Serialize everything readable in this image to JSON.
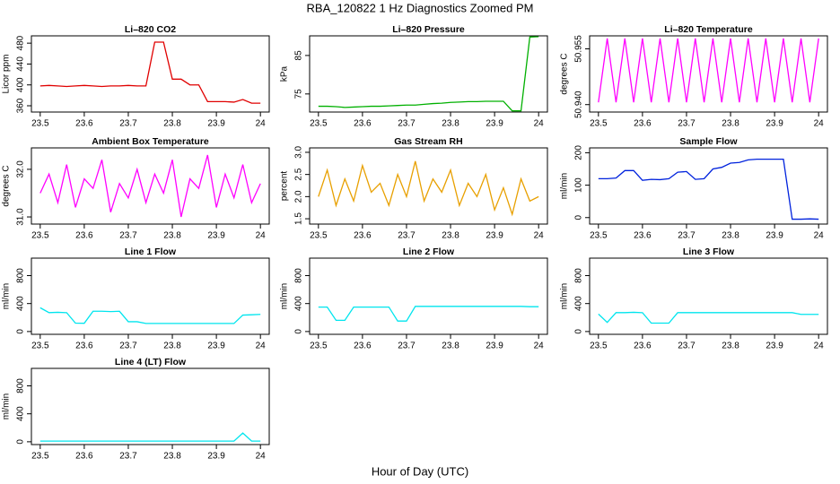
{
  "title": "RBA_120822  1 Hz Diagnostics Zoomed PM",
  "xlabel": "Hour of Day (UTC)",
  "chart_data": [
    {
      "type": "line",
      "title": "Li–820 CO2",
      "ylabel": "Licor ppm",
      "x": [
        23.5,
        23.52,
        23.54,
        23.56,
        23.58,
        23.6,
        23.62,
        23.64,
        23.66,
        23.68,
        23.7,
        23.72,
        23.74,
        23.76,
        23.78,
        23.8,
        23.82,
        23.84,
        23.86,
        23.88,
        23.9,
        23.92,
        23.94,
        23.96,
        23.98,
        24.0
      ],
      "xlim": [
        23.48,
        24.02
      ],
      "xticks": [
        23.5,
        23.6,
        23.7,
        23.8,
        23.9,
        24.0
      ],
      "ylim": [
        348,
        494
      ],
      "yticks": [
        360,
        400,
        440,
        480
      ],
      "series": [
        {
          "color": "#e00000",
          "values": [
            398,
            399,
            398,
            397,
            398,
            399,
            398,
            397,
            398,
            398,
            399,
            398,
            398,
            482,
            482,
            411,
            411,
            400,
            400,
            368,
            368,
            368,
            367,
            372,
            365,
            365
          ]
        }
      ]
    },
    {
      "type": "line",
      "title": "Li–820 Pressure",
      "ylabel": "kPa",
      "x": [
        23.5,
        23.52,
        23.54,
        23.56,
        23.58,
        23.6,
        23.62,
        23.64,
        23.66,
        23.68,
        23.7,
        23.72,
        23.74,
        23.76,
        23.78,
        23.8,
        23.82,
        23.84,
        23.86,
        23.88,
        23.9,
        23.92,
        23.94,
        23.96,
        23.98,
        24.0
      ],
      "xlim": [
        23.48,
        24.02
      ],
      "xticks": [
        23.5,
        23.6,
        23.7,
        23.8,
        23.9,
        24.0
      ],
      "ylim": [
        70.3,
        90.1
      ],
      "yticks": [
        75,
        85
      ],
      "series": [
        {
          "color": "#00b000",
          "values": [
            71.8,
            71.8,
            71.7,
            71.5,
            71.6,
            71.7,
            71.8,
            71.8,
            71.9,
            72.0,
            72.1,
            72.1,
            72.3,
            72.5,
            72.6,
            72.8,
            72.9,
            73.0,
            73.0,
            73.1,
            73.1,
            73.1,
            70.6,
            70.6,
            89.8,
            89.9
          ]
        }
      ]
    },
    {
      "type": "line",
      "title": "Li–820 Temperature",
      "ylabel": "degrees C",
      "x": [
        23.5,
        23.52,
        23.54,
        23.56,
        23.58,
        23.6,
        23.62,
        23.64,
        23.66,
        23.68,
        23.7,
        23.72,
        23.74,
        23.76,
        23.78,
        23.8,
        23.82,
        23.84,
        23.86,
        23.88,
        23.9,
        23.92,
        23.94,
        23.96,
        23.98,
        24.0
      ],
      "xlim": [
        23.48,
        24.02
      ],
      "xticks": [
        23.5,
        23.6,
        23.7,
        23.8,
        23.9,
        24.0
      ],
      "ylim": [
        50.938,
        50.9585
      ],
      "yticks": [
        {
          "value": 50.94,
          "label": "50.940"
        },
        {
          "value": 50.955,
          "label": "50.955"
        }
      ],
      "series": [
        {
          "color": "#ff00ff",
          "values": [
            50.9406,
            50.9578,
            50.9406,
            50.9578,
            50.9406,
            50.9578,
            50.9406,
            50.9578,
            50.9406,
            50.9578,
            50.9406,
            50.9578,
            50.9406,
            50.9578,
            50.9406,
            50.9578,
            50.9406,
            50.9578,
            50.9406,
            50.9578,
            50.9406,
            50.9578,
            50.9406,
            50.9578,
            50.9406,
            50.9578
          ]
        }
      ]
    },
    {
      "type": "line",
      "title": "Ambient Box Temperature",
      "ylabel": "degrees C",
      "x": [
        23.5,
        23.52,
        23.54,
        23.56,
        23.58,
        23.6,
        23.62,
        23.64,
        23.66,
        23.68,
        23.7,
        23.72,
        23.74,
        23.76,
        23.78,
        23.8,
        23.82,
        23.84,
        23.86,
        23.88,
        23.9,
        23.92,
        23.94,
        23.96,
        23.98,
        24.0
      ],
      "xlim": [
        23.48,
        24.02
      ],
      "xticks": [
        23.5,
        23.6,
        23.7,
        23.8,
        23.9,
        24.0
      ],
      "ylim": [
        30.85,
        32.45
      ],
      "yticks": [
        {
          "value": 31,
          "label": "31.0"
        },
        {
          "value": 32,
          "label": "32.0"
        }
      ],
      "series": [
        {
          "color": "#ff00ff",
          "values": [
            31.5,
            31.9,
            31.3,
            32.1,
            31.2,
            31.8,
            31.6,
            32.2,
            31.1,
            31.7,
            31.4,
            32.0,
            31.3,
            31.9,
            31.5,
            32.2,
            31.0,
            31.8,
            31.6,
            32.3,
            31.2,
            31.9,
            31.4,
            32.1,
            31.3,
            31.7
          ]
        }
      ]
    },
    {
      "type": "line",
      "title": "Gas Stream RH",
      "ylabel": "percent",
      "x": [
        23.5,
        23.52,
        23.54,
        23.56,
        23.58,
        23.6,
        23.62,
        23.64,
        23.66,
        23.68,
        23.7,
        23.72,
        23.74,
        23.76,
        23.78,
        23.8,
        23.82,
        23.84,
        23.86,
        23.88,
        23.9,
        23.92,
        23.94,
        23.96,
        23.98,
        24.0
      ],
      "xlim": [
        23.48,
        24.02
      ],
      "xticks": [
        23.5,
        23.6,
        23.7,
        23.8,
        23.9,
        24.0
      ],
      "ylim": [
        1.38,
        3.1
      ],
      "yticks": [
        1.5,
        {
          "value": 2,
          "label": "2.0"
        },
        2.5,
        {
          "value": 3,
          "label": "3.0"
        }
      ],
      "series": [
        {
          "color": "#e8a000",
          "values": [
            2.0,
            2.6,
            1.8,
            2.4,
            1.9,
            2.7,
            2.1,
            2.3,
            1.8,
            2.5,
            2.0,
            2.8,
            1.9,
            2.4,
            2.1,
            2.6,
            1.8,
            2.3,
            2.0,
            2.5,
            1.7,
            2.2,
            1.6,
            2.4,
            1.9,
            2.0
          ]
        }
      ]
    },
    {
      "type": "line",
      "title": "Sample Flow",
      "ylabel": "ml/min",
      "x": [
        23.5,
        23.52,
        23.54,
        23.56,
        23.58,
        23.6,
        23.62,
        23.64,
        23.66,
        23.68,
        23.7,
        23.72,
        23.74,
        23.76,
        23.78,
        23.8,
        23.82,
        23.84,
        23.86,
        23.88,
        23.9,
        23.92,
        23.94,
        23.96,
        23.98,
        24.0
      ],
      "xlim": [
        23.48,
        24.02
      ],
      "xticks": [
        23.5,
        23.6,
        23.7,
        23.8,
        23.9,
        24.0
      ],
      "ylim": [
        -20,
        215
      ],
      "yticks": [
        0,
        100,
        200
      ],
      "series": [
        {
          "color": "#0022dd",
          "values": [
            120,
            120,
            122,
            145,
            145,
            115,
            118,
            117,
            120,
            140,
            142,
            118,
            120,
            150,
            155,
            168,
            170,
            178,
            180,
            180,
            180,
            180,
            -5,
            -5,
            -4,
            -5
          ]
        }
      ]
    },
    {
      "type": "line",
      "title": "Line 1 Flow",
      "ylabel": "ml/min",
      "x": [
        23.5,
        23.52,
        23.54,
        23.56,
        23.58,
        23.6,
        23.62,
        23.64,
        23.66,
        23.68,
        23.7,
        23.72,
        23.74,
        23.76,
        23.78,
        23.8,
        23.82,
        23.84,
        23.86,
        23.88,
        23.9,
        23.92,
        23.94,
        23.96,
        23.98,
        24.0
      ],
      "xlim": [
        23.48,
        24.02
      ],
      "xticks": [
        23.5,
        23.6,
        23.7,
        23.8,
        23.9,
        24.0
      ],
      "ylim": [
        -40,
        1050
      ],
      "yticks": [
        0,
        400,
        800
      ],
      "series": [
        {
          "color": "#00e5ee",
          "values": [
            340,
            270,
            275,
            270,
            120,
            118,
            290,
            290,
            285,
            290,
            140,
            140,
            115,
            115,
            115,
            115,
            115,
            115,
            115,
            115,
            115,
            115,
            115,
            235,
            240,
            245
          ]
        }
      ]
    },
    {
      "type": "line",
      "title": "Line 2 Flow",
      "ylabel": "ml/min",
      "x": [
        23.5,
        23.52,
        23.54,
        23.56,
        23.58,
        23.6,
        23.62,
        23.64,
        23.66,
        23.68,
        23.7,
        23.72,
        23.74,
        23.76,
        23.78,
        23.8,
        23.82,
        23.84,
        23.86,
        23.88,
        23.9,
        23.92,
        23.94,
        23.96,
        23.98,
        24.0
      ],
      "xlim": [
        23.48,
        24.02
      ],
      "xticks": [
        23.5,
        23.6,
        23.7,
        23.8,
        23.9,
        24.0
      ],
      "ylim": [
        -40,
        1050
      ],
      "yticks": [
        0,
        400,
        800
      ],
      "series": [
        {
          "color": "#00e5ee",
          "values": [
            350,
            350,
            160,
            160,
            350,
            350,
            350,
            350,
            350,
            150,
            150,
            360,
            360,
            360,
            360,
            360,
            360,
            360,
            360,
            360,
            360,
            360,
            360,
            360,
            355,
            355
          ]
        }
      ]
    },
    {
      "type": "line",
      "title": "Line 3 Flow",
      "ylabel": "ml/min",
      "x": [
        23.5,
        23.52,
        23.54,
        23.56,
        23.58,
        23.6,
        23.62,
        23.64,
        23.66,
        23.68,
        23.7,
        23.72,
        23.74,
        23.76,
        23.78,
        23.8,
        23.82,
        23.84,
        23.86,
        23.88,
        23.9,
        23.92,
        23.94,
        23.96,
        23.98,
        24.0
      ],
      "xlim": [
        23.48,
        24.02
      ],
      "xticks": [
        23.5,
        23.6,
        23.7,
        23.8,
        23.9,
        24.0
      ],
      "ylim": [
        -40,
        1050
      ],
      "yticks": [
        0,
        400,
        800
      ],
      "series": [
        {
          "color": "#00e5ee",
          "values": [
            250,
            130,
            270,
            270,
            275,
            270,
            120,
            120,
            120,
            270,
            270,
            270,
            270,
            270,
            270,
            270,
            270,
            270,
            270,
            270,
            270,
            270,
            270,
            245,
            245,
            245
          ]
        }
      ]
    },
    {
      "type": "line",
      "title": "Line 4 (LT) Flow",
      "ylabel": "ml/min",
      "x": [
        23.5,
        23.52,
        23.54,
        23.56,
        23.58,
        23.6,
        23.62,
        23.64,
        23.66,
        23.68,
        23.7,
        23.72,
        23.74,
        23.76,
        23.78,
        23.8,
        23.82,
        23.84,
        23.86,
        23.88,
        23.9,
        23.92,
        23.94,
        23.96,
        23.98,
        24.0
      ],
      "xlim": [
        23.48,
        24.02
      ],
      "xticks": [
        23.5,
        23.6,
        23.7,
        23.8,
        23.9,
        24.0
      ],
      "ylim": [
        -40,
        1050
      ],
      "yticks": [
        0,
        400,
        800
      ],
      "series": [
        {
          "color": "#00e5ee",
          "values": [
            10,
            10,
            10,
            10,
            10,
            10,
            10,
            10,
            10,
            10,
            10,
            10,
            10,
            10,
            10,
            10,
            10,
            10,
            10,
            10,
            10,
            10,
            10,
            125,
            10,
            10
          ]
        }
      ]
    }
  ]
}
